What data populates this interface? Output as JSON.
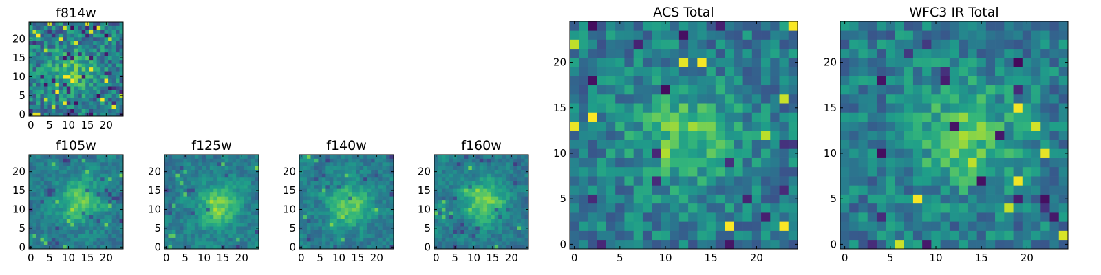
{
  "figure": {
    "description_colormap": "viridis"
  },
  "chart_data": [
    {
      "type": "heatmap",
      "title": "f814w",
      "grid_size": 25,
      "seed": 11,
      "peak": [
        11,
        12
      ],
      "blur": 0,
      "strength": 0.28,
      "noise": 0.42,
      "extreme_rate": 0.09,
      "xlim": [
        -0.5,
        24.5
      ],
      "ylim": [
        -0.5,
        24.5
      ],
      "xticks": [
        0,
        5,
        10,
        15,
        20
      ],
      "yticks": [
        0,
        5,
        10,
        15,
        20
      ],
      "x_tick_labels": [
        "0",
        "5",
        "10",
        "15",
        "20"
      ],
      "y_tick_labels": [
        "0",
        "5",
        "10",
        "15",
        "20"
      ],
      "colormap": "viridis"
    },
    {
      "type": "heatmap",
      "title": "f105w",
      "grid_size": 25,
      "seed": 23,
      "peak": [
        13,
        12
      ],
      "blur": 1,
      "strength": 0.35,
      "noise": 0.32,
      "extreme_rate": 0.05,
      "xlim": [
        -0.5,
        24.5
      ],
      "ylim": [
        -0.5,
        24.5
      ],
      "xticks": [
        0,
        5,
        10,
        15,
        20
      ],
      "yticks": [
        0,
        5,
        10,
        15,
        20
      ],
      "x_tick_labels": [
        "0",
        "5",
        "10",
        "15",
        "20"
      ],
      "y_tick_labels": [
        "0",
        "5",
        "10",
        "15",
        "20"
      ],
      "colormap": "viridis"
    },
    {
      "type": "heatmap",
      "title": "f125w",
      "grid_size": 25,
      "seed": 37,
      "peak": [
        14,
        11
      ],
      "blur": 1,
      "strength": 0.35,
      "noise": 0.32,
      "extreme_rate": 0.05,
      "xlim": [
        -0.5,
        24.5
      ],
      "ylim": [
        -0.5,
        24.5
      ],
      "xticks": [
        0,
        5,
        10,
        15,
        20
      ],
      "yticks": [
        0,
        5,
        10,
        15,
        20
      ],
      "x_tick_labels": [
        "0",
        "5",
        "10",
        "15",
        "20"
      ],
      "y_tick_labels": [
        "0",
        "5",
        "10",
        "15",
        "20"
      ],
      "colormap": "viridis"
    },
    {
      "type": "heatmap",
      "title": "f140w",
      "grid_size": 25,
      "seed": 41,
      "peak": [
        13,
        11
      ],
      "blur": 1,
      "strength": 0.35,
      "noise": 0.32,
      "extreme_rate": 0.05,
      "xlim": [
        -0.5,
        24.5
      ],
      "ylim": [
        -0.5,
        24.5
      ],
      "xticks": [
        0,
        5,
        10,
        15,
        20
      ],
      "yticks": [
        0,
        5,
        10,
        15,
        20
      ],
      "x_tick_labels": [
        "0",
        "5",
        "10",
        "15",
        "20"
      ],
      "y_tick_labels": [
        "0",
        "5",
        "10",
        "15",
        "20"
      ],
      "colormap": "viridis"
    },
    {
      "type": "heatmap",
      "title": "f160w",
      "grid_size": 25,
      "seed": 53,
      "peak": [
        13,
        12
      ],
      "blur": 1,
      "strength": 0.38,
      "noise": 0.32,
      "extreme_rate": 0.07,
      "xlim": [
        -0.5,
        24.5
      ],
      "ylim": [
        -0.5,
        24.5
      ],
      "xticks": [
        0,
        5,
        10,
        15,
        20
      ],
      "yticks": [
        0,
        5,
        10,
        15,
        20
      ],
      "x_tick_labels": [
        "0",
        "5",
        "10",
        "15",
        "20"
      ],
      "y_tick_labels": [
        "0",
        "5",
        "10",
        "15",
        "20"
      ],
      "colormap": "viridis"
    },
    {
      "type": "heatmap",
      "title": "ACS Total",
      "grid_size": 25,
      "seed": 67,
      "peak": [
        12,
        12
      ],
      "blur": 0,
      "strength": 0.3,
      "noise": 0.34,
      "extreme_rate": 0.04,
      "xlim": [
        -0.5,
        24.5
      ],
      "ylim": [
        -0.5,
        24.5
      ],
      "xticks": [
        0,
        5,
        10,
        15,
        20
      ],
      "yticks": [
        0,
        5,
        10,
        15,
        20
      ],
      "x_tick_labels": [
        "0",
        "5",
        "10",
        "15",
        "20"
      ],
      "y_tick_labels": [
        "0",
        "5",
        "10",
        "15",
        "20"
      ],
      "colormap": "viridis"
    },
    {
      "type": "heatmap",
      "title": "WFC3 IR Total",
      "grid_size": 25,
      "seed": 79,
      "peak": [
        13,
        12
      ],
      "blur": 0,
      "strength": 0.3,
      "noise": 0.34,
      "extreme_rate": 0.05,
      "xlim": [
        -0.5,
        24.5
      ],
      "ylim": [
        -0.5,
        24.5
      ],
      "xticks": [
        0,
        5,
        10,
        15,
        20
      ],
      "yticks": [
        0,
        5,
        10,
        15,
        20
      ],
      "x_tick_labels": [
        "0",
        "5",
        "10",
        "15",
        "20"
      ],
      "y_tick_labels": [
        "0",
        "5",
        "10",
        "15",
        "20"
      ],
      "colormap": "viridis"
    }
  ]
}
